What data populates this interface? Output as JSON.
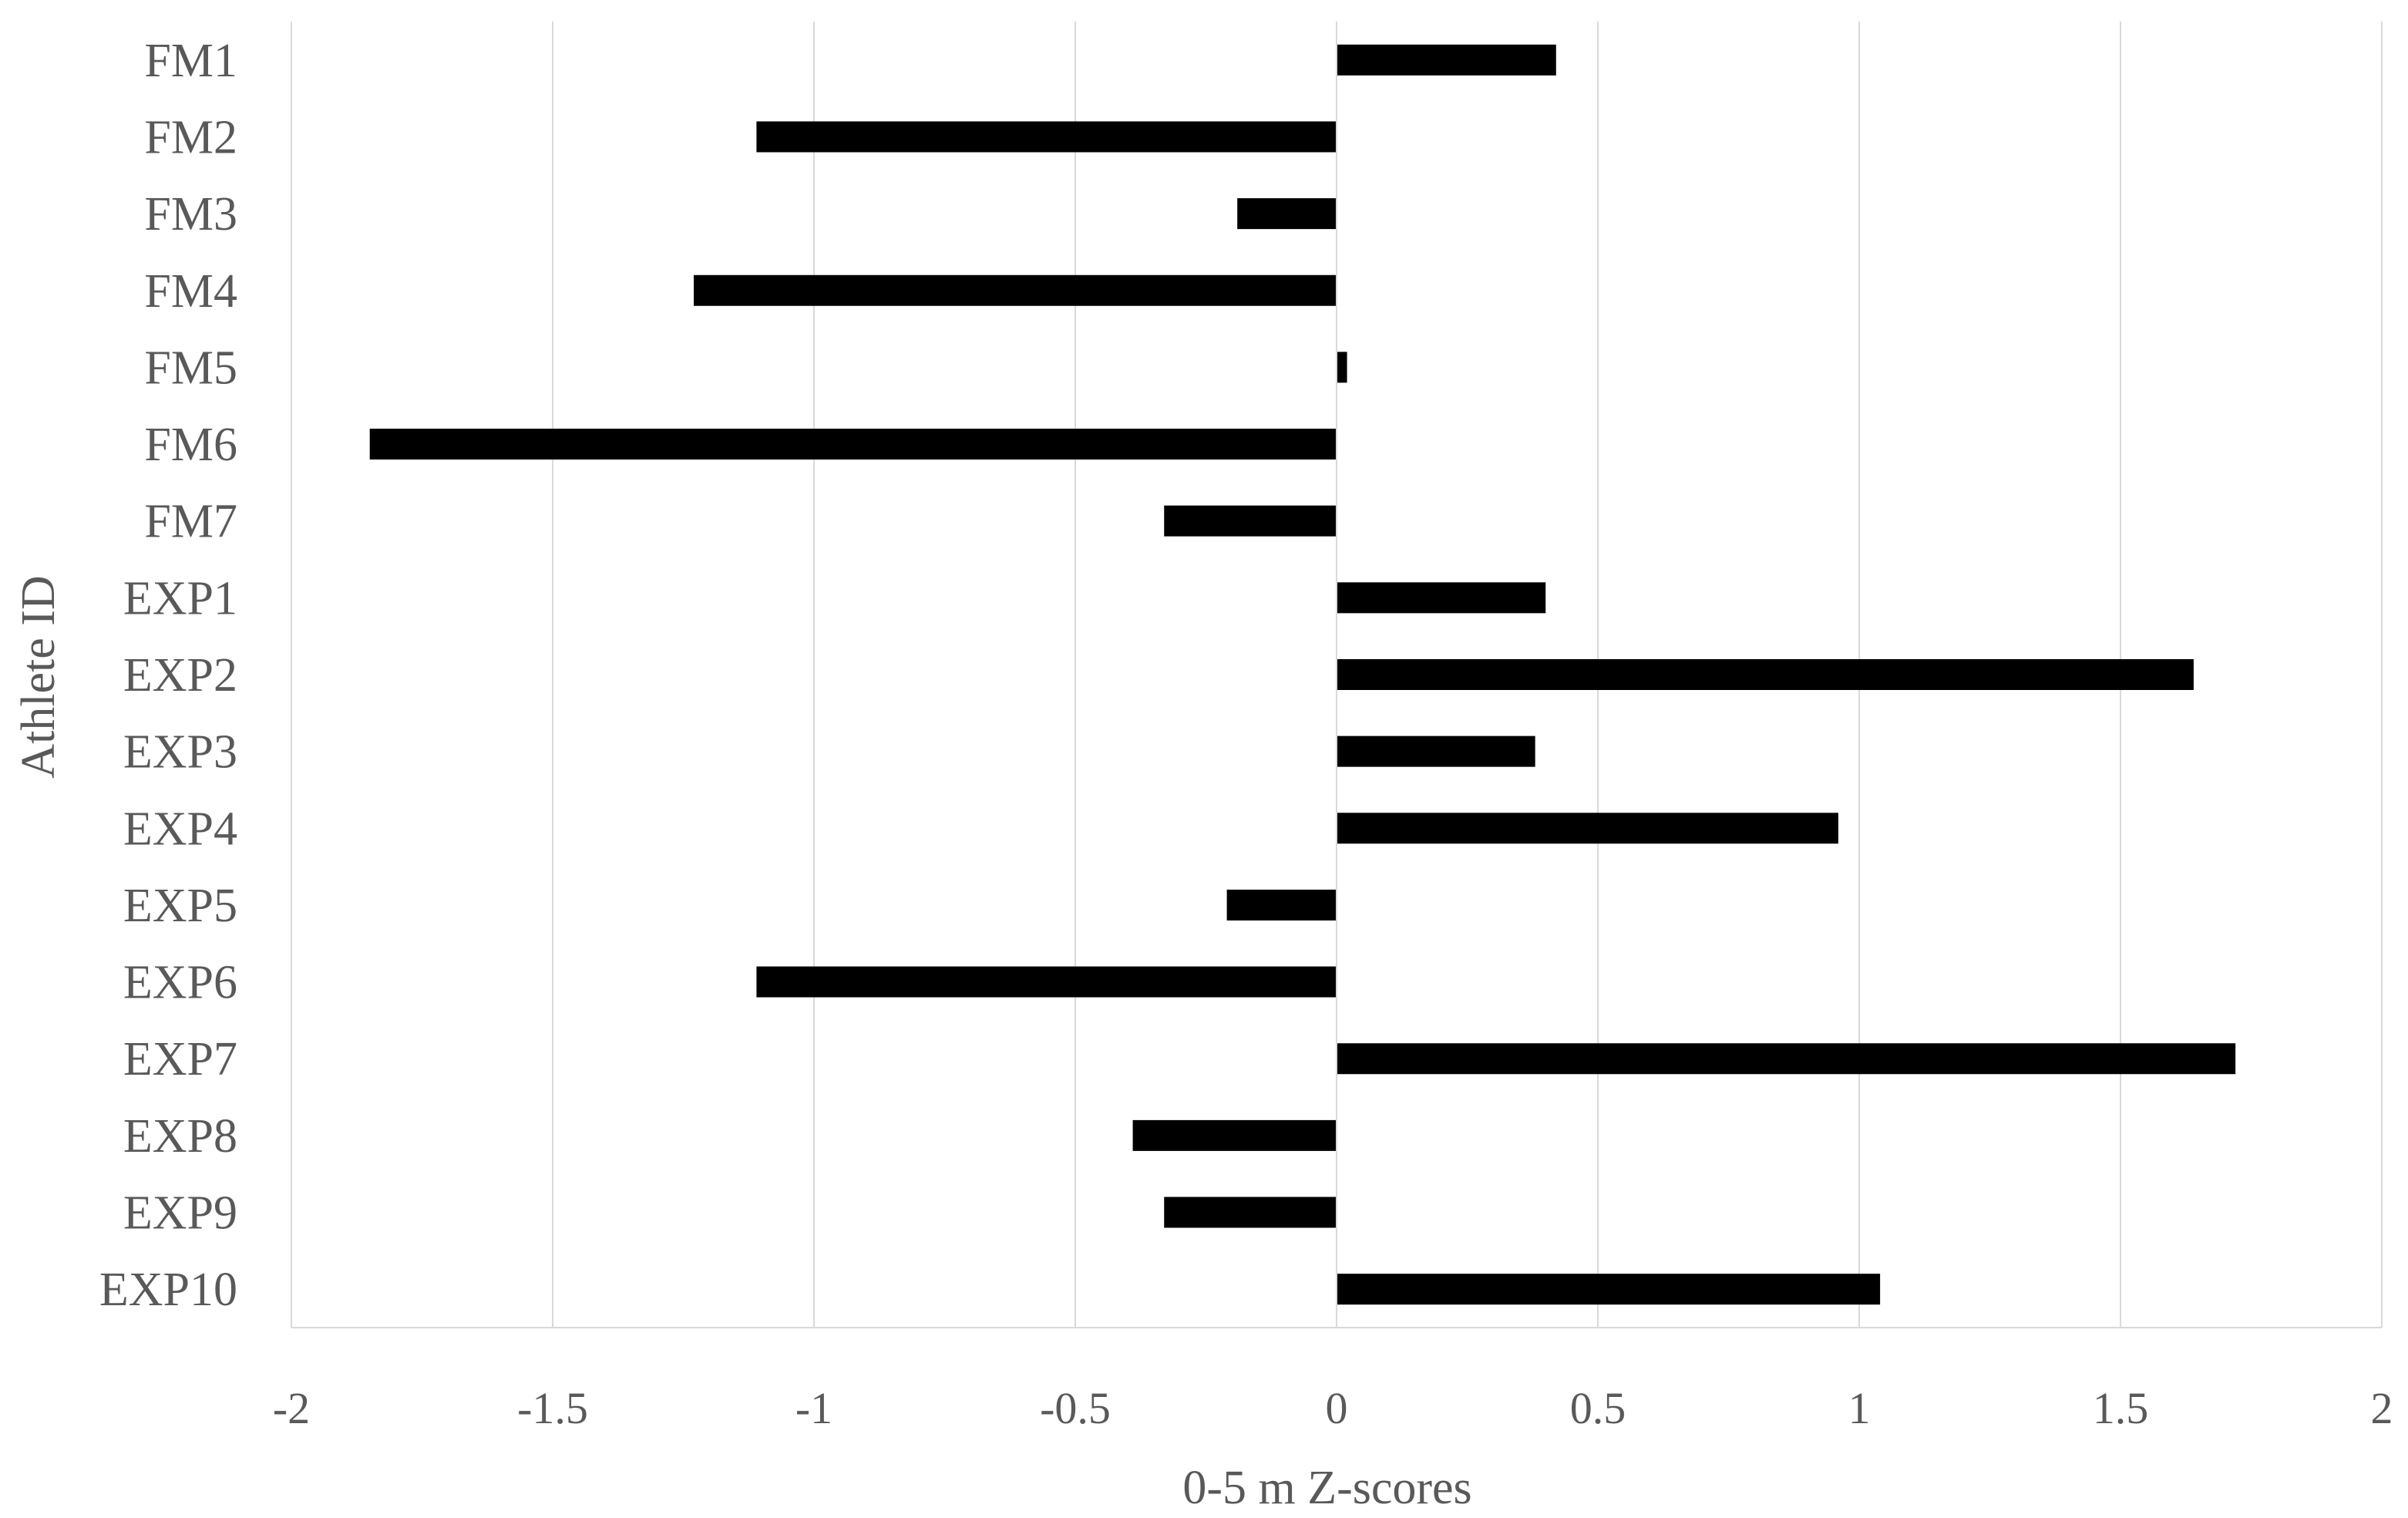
{
  "chart_data": {
    "type": "bar",
    "orientation": "horizontal",
    "categories": [
      "FM1",
      "FM2",
      "FM3",
      "FM4",
      "FM5",
      "FM6",
      "FM7",
      "EXP1",
      "EXP2",
      "EXP3",
      "EXP4",
      "EXP5",
      "EXP6",
      "EXP7",
      "EXP8",
      "EXP9",
      "EXP10"
    ],
    "values": [
      0.42,
      -1.11,
      -0.19,
      -1.23,
      0.02,
      -1.85,
      -0.33,
      0.4,
      1.64,
      0.38,
      0.96,
      -0.21,
      -1.11,
      1.72,
      -0.39,
      -0.33,
      1.04
    ],
    "xlabel": "0-5 m Z-scores",
    "ylabel": "Athlete ID",
    "xlim": [
      -2,
      2
    ],
    "xticks": [
      -2,
      -1.5,
      -1,
      -0.5,
      0,
      0.5,
      1,
      1.5,
      2
    ],
    "xtick_labels": [
      "-2",
      "-1.5",
      "-1",
      "-0.5",
      "0",
      "0.5",
      "1",
      "1.5",
      "2"
    ],
    "grid": "vertical",
    "legend": "none",
    "bar_color": "#000000",
    "grid_color": "#d9d9d9",
    "text_color": "#595959"
  }
}
